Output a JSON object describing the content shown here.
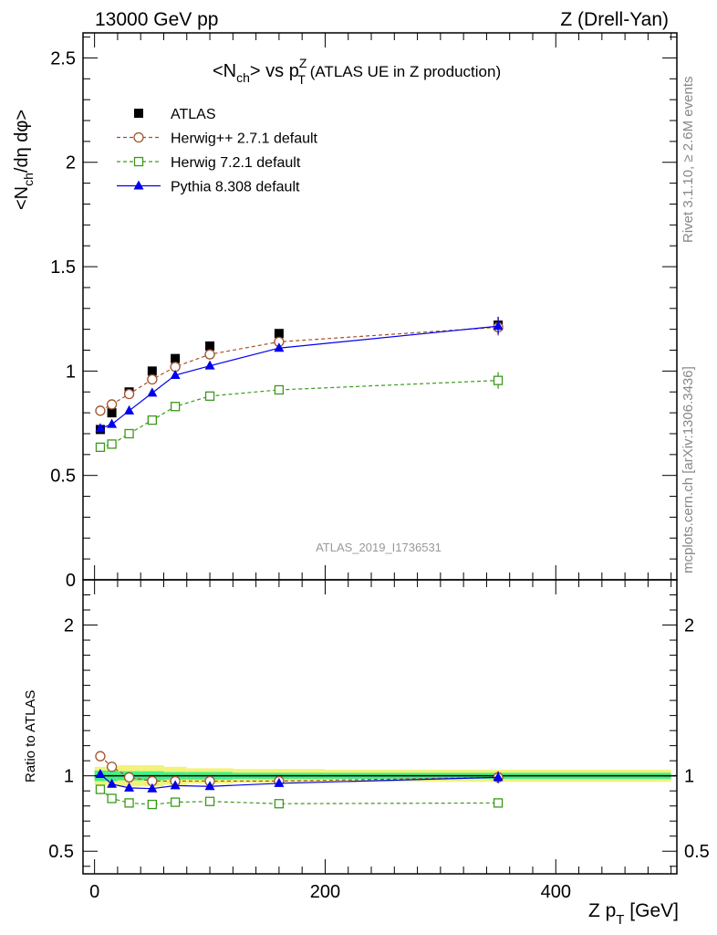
{
  "header": {
    "left": "13000 GeV pp",
    "right": "Z (Drell-Yan)"
  },
  "side_labels": {
    "rivet": "Rivet 3.1.10, ≥ 2.6M events",
    "source": "mcplots.cern.ch [arXiv:1306.3436]"
  },
  "analysis_id": "ATLAS_2019_I1736531",
  "colors": {
    "atlas": "#000000",
    "herwigpp": "#a0522d",
    "herwig7": "#3a9a1a",
    "pythia": "#0000ee",
    "band_inner": "#44ee88",
    "band_outer": "#f2f27a"
  },
  "chart_data": [
    {
      "type": "scatter",
      "title": "<N_ch> vs p_T^Z (ATLAS UE in Z production)",
      "title_parts": {
        "main": "<N",
        "main_sub": "ch",
        "mid": "> vs p",
        "p_sub": "T",
        "p_sup": "Z",
        "rest": " (ATLAS UE in Z production)"
      },
      "ylabel": "<N_ch/dη dφ>",
      "ylabel_parts": {
        "a": "<N",
        "sub": "ch",
        "b": "/dη dφ>"
      },
      "xlim": [
        -10,
        505
      ],
      "ylim": [
        0,
        2.62
      ],
      "yticks": [
        0,
        0.5,
        1,
        1.5,
        2,
        2.5
      ],
      "ytick_labels": [
        "0",
        "0.5",
        "1",
        "1.5",
        "2",
        "2.5"
      ],
      "legend_position": "top-left",
      "x": [
        5,
        15,
        30,
        50,
        70,
        100,
        160,
        350
      ],
      "series": [
        {
          "name": "ATLAS",
          "marker": "square-filled",
          "values": [
            0.72,
            0.8,
            0.9,
            1.0,
            1.06,
            1.12,
            1.18,
            1.22
          ]
        },
        {
          "name": "Herwig++ 2.7.1 default",
          "marker": "circle-open",
          "line": "dashed",
          "values": [
            0.81,
            0.84,
            0.89,
            0.96,
            1.02,
            1.08,
            1.14,
            1.21
          ]
        },
        {
          "name": "Herwig 7.2.1 default",
          "marker": "square-open",
          "line": "dashed",
          "values": [
            0.635,
            0.65,
            0.7,
            0.765,
            0.83,
            0.88,
            0.91,
            0.955
          ]
        },
        {
          "name": "Pythia 8.308 default",
          "marker": "triangle-filled",
          "line": "solid",
          "values": [
            0.725,
            0.745,
            0.81,
            0.895,
            0.98,
            1.025,
            1.11,
            1.215
          ]
        }
      ]
    },
    {
      "type": "scatter",
      "ylabel": "Ratio to ATLAS",
      "xlabel": "Z p_T [GeV]",
      "xlabel_parts": {
        "a": "Z p",
        "sub": "T",
        "b": " [GeV]"
      },
      "xlim": [
        -10,
        505
      ],
      "ylim": [
        0.35,
        2.3
      ],
      "yticks": [
        0.5,
        1,
        2
      ],
      "ytick_labels": [
        "0.5",
        "1",
        "2"
      ],
      "xticks": [
        0,
        200,
        400
      ],
      "xtick_labels": [
        "0",
        "200",
        "400"
      ],
      "x": [
        5,
        15,
        30,
        50,
        70,
        100,
        160,
        350
      ],
      "band_edges": [
        0,
        10,
        20,
        40,
        60,
        80,
        120,
        200,
        500
      ],
      "band_inner_halfwidth": [
        0.035,
        0.035,
        0.03,
        0.03,
        0.025,
        0.025,
        0.02,
        0.02
      ],
      "band_outer_halfwidth": [
        0.06,
        0.06,
        0.07,
        0.07,
        0.06,
        0.05,
        0.045,
        0.04
      ],
      "series": [
        {
          "name": "Herwig++ 2.7.1 default",
          "values": [
            1.13,
            1.06,
            0.99,
            0.965,
            0.965,
            0.965,
            0.965,
            0.99
          ]
        },
        {
          "name": "Herwig 7.2.1 default",
          "values": [
            0.91,
            0.85,
            0.82,
            0.81,
            0.825,
            0.83,
            0.815,
            0.82
          ]
        },
        {
          "name": "Pythia 8.308 default",
          "values": [
            1.01,
            0.945,
            0.92,
            0.915,
            0.935,
            0.93,
            0.95,
            0.99
          ]
        }
      ]
    }
  ]
}
